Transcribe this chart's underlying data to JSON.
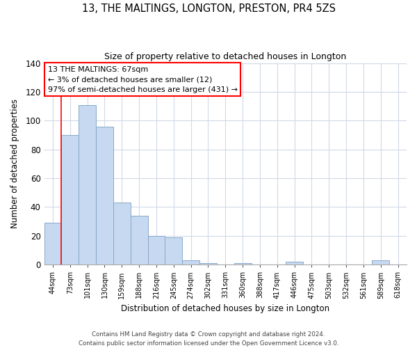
{
  "title": "13, THE MALTINGS, LONGTON, PRESTON, PR4 5ZS",
  "subtitle": "Size of property relative to detached houses in Longton",
  "xlabel": "Distribution of detached houses by size in Longton",
  "ylabel": "Number of detached properties",
  "categories": [
    "44sqm",
    "73sqm",
    "101sqm",
    "130sqm",
    "159sqm",
    "188sqm",
    "216sqm",
    "245sqm",
    "274sqm",
    "302sqm",
    "331sqm",
    "360sqm",
    "388sqm",
    "417sqm",
    "446sqm",
    "475sqm",
    "503sqm",
    "532sqm",
    "561sqm",
    "589sqm",
    "618sqm"
  ],
  "values": [
    29,
    90,
    111,
    96,
    43,
    34,
    20,
    19,
    3,
    1,
    0,
    1,
    0,
    0,
    2,
    0,
    0,
    0,
    0,
    3,
    0
  ],
  "bar_color": "#c6d9f0",
  "bar_edge_color": "#89a8c8",
  "ylim": [
    0,
    140
  ],
  "yticks": [
    0,
    20,
    40,
    60,
    80,
    100,
    120,
    140
  ],
  "annotation_title": "13 THE MALTINGS: 67sqm",
  "annotation_line1": "← 3% of detached houses are smaller (12)",
  "annotation_line2": "97% of semi-detached houses are larger (431) →",
  "footer_line1": "Contains HM Land Registry data © Crown copyright and database right 2024.",
  "footer_line2": "Contains public sector information licensed under the Open Government Licence v3.0.",
  "background_color": "#ffffff",
  "grid_color": "#d0d8e8"
}
